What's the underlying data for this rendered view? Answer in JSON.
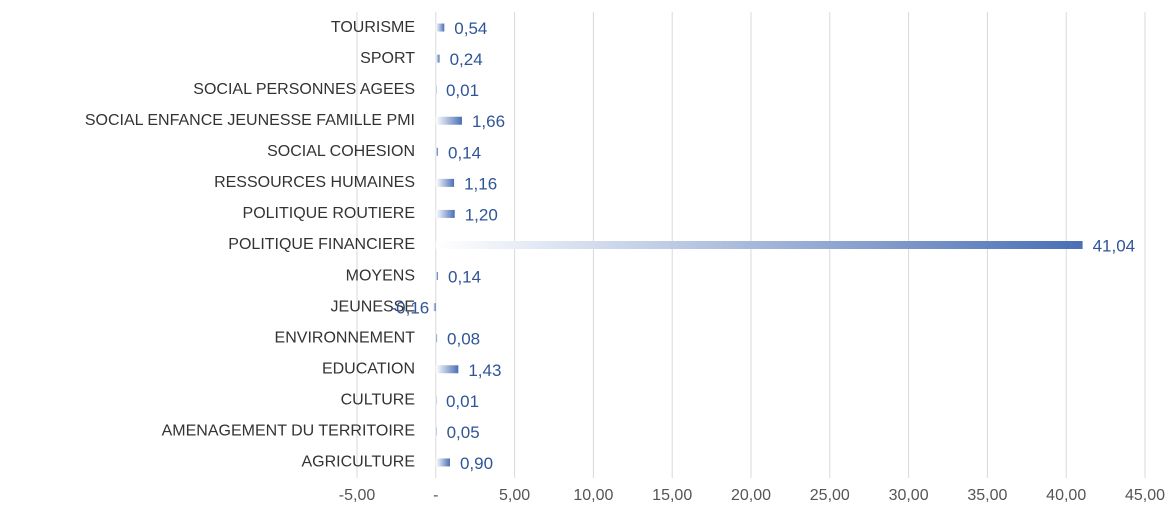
{
  "chart_data": {
    "type": "barh",
    "categories": [
      "TOURISME",
      "SPORT",
      "SOCIAL PERSONNES AGEES",
      "SOCIAL ENFANCE JEUNESSE FAMILLE PMI",
      "SOCIAL COHESION",
      "RESSOURCES HUMAINES",
      "POLITIQUE ROUTIERE",
      "POLITIQUE FINANCIERE",
      "MOYENS",
      "JEUNESSE",
      "ENVIRONNEMENT",
      "EDUCATION",
      "CULTURE",
      "AMENAGEMENT DU TERRITOIRE",
      "AGRICULTURE"
    ],
    "values": [
      0.54,
      0.24,
      0.01,
      1.66,
      0.14,
      1.16,
      1.2,
      41.04,
      0.14,
      -0.16,
      0.08,
      1.43,
      0.01,
      0.05,
      0.9
    ],
    "value_labels": [
      "0,54",
      "0,24",
      "0,01",
      "1,66",
      "0,14",
      "1,16",
      "1,20",
      "41,04",
      "0,14",
      "-0,16",
      "0,08",
      "1,43",
      "0,01",
      "0,05",
      "0,90"
    ],
    "color": "#4a6fb5",
    "xlim": [
      -5,
      45
    ],
    "xticks": [
      {
        "value": -5,
        "label": "-5,00"
      },
      {
        "value": 0,
        "label": "-"
      },
      {
        "value": 5,
        "label": "5,00"
      },
      {
        "value": 10,
        "label": "10,00"
      },
      {
        "value": 15,
        "label": "15,00"
      },
      {
        "value": 20,
        "label": "20,00"
      },
      {
        "value": 25,
        "label": "25,00"
      },
      {
        "value": 30,
        "label": "30,00"
      },
      {
        "value": 35,
        "label": "35,00"
      },
      {
        "value": 40,
        "label": "40,00"
      },
      {
        "value": 45,
        "label": "45,00"
      }
    ],
    "grid": true
  }
}
